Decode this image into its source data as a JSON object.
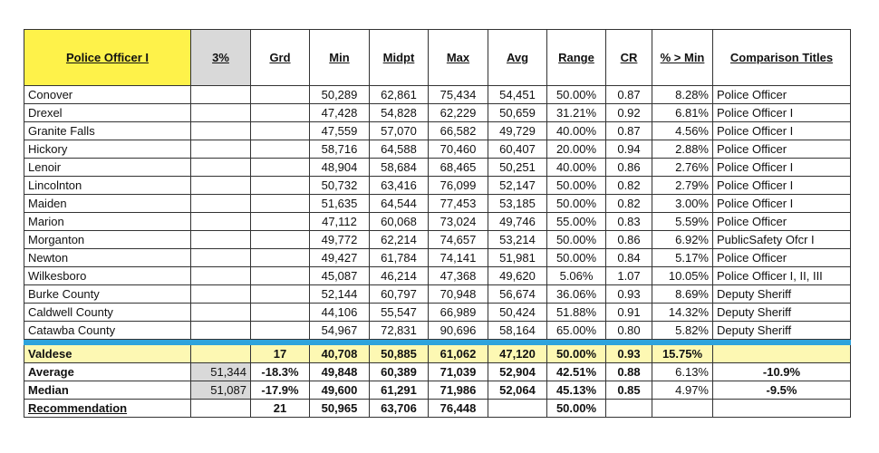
{
  "headers": {
    "title": "Police Officer I",
    "pct": "3%",
    "grd": "Grd",
    "min": "Min",
    "midpt": "Midpt",
    "max": "Max",
    "avg": "Avg",
    "range": "Range",
    "cr": "CR",
    "pct_min": "% > Min",
    "comparison": "Comparison Titles"
  },
  "rows": [
    {
      "name": "Conover",
      "min": "50,289",
      "midpt": "62,861",
      "max": "75,434",
      "avg": "54,451",
      "range": "50.00%",
      "cr": "0.87",
      "pct_min": "8.28%",
      "title": "Police Officer"
    },
    {
      "name": "Drexel",
      "min": "47,428",
      "midpt": "54,828",
      "max": "62,229",
      "avg": "50,659",
      "range": "31.21%",
      "cr": "0.92",
      "pct_min": "6.81%",
      "title": "Police Officer I"
    },
    {
      "name": "Granite Falls",
      "min": "47,559",
      "midpt": "57,070",
      "max": "66,582",
      "avg": "49,729",
      "range": "40.00%",
      "cr": "0.87",
      "pct_min": "4.56%",
      "title": "Police Officer I"
    },
    {
      "name": "Hickory",
      "min": "58,716",
      "midpt": "64,588",
      "max": "70,460",
      "avg": "60,407",
      "range": "20.00%",
      "cr": "0.94",
      "pct_min": "2.88%",
      "title": "Police Officer"
    },
    {
      "name": "Lenoir",
      "min": "48,904",
      "midpt": "58,684",
      "max": "68,465",
      "avg": "50,251",
      "range": "40.00%",
      "cr": "0.86",
      "pct_min": "2.76%",
      "title": "Police Officer I"
    },
    {
      "name": "Lincolnton",
      "min": "50,732",
      "midpt": "63,416",
      "max": "76,099",
      "avg": "52,147",
      "range": "50.00%",
      "cr": "0.82",
      "pct_min": "2.79%",
      "title": "Police Officer I"
    },
    {
      "name": "Maiden",
      "min": "51,635",
      "midpt": "64,544",
      "max": "77,453",
      "avg": "53,185",
      "range": "50.00%",
      "cr": "0.82",
      "pct_min": "3.00%",
      "title": "Police Officer I"
    },
    {
      "name": "Marion",
      "min": "47,112",
      "midpt": "60,068",
      "max": "73,024",
      "avg": "49,746",
      "range": "55.00%",
      "cr": "0.83",
      "pct_min": "5.59%",
      "title": "Police Officer"
    },
    {
      "name": "Morganton",
      "min": "49,772",
      "midpt": "62,214",
      "max": "74,657",
      "avg": "53,214",
      "range": "50.00%",
      "cr": "0.86",
      "pct_min": "6.92%",
      "title": "PublicSafety Ofcr I"
    },
    {
      "name": "Newton",
      "min": "49,427",
      "midpt": "61,784",
      "max": "74,141",
      "avg": "51,981",
      "range": "50.00%",
      "cr": "0.84",
      "pct_min": "5.17%",
      "title": "Police Officer"
    },
    {
      "name": "Wilkesboro",
      "min": "45,087",
      "midpt": "46,214",
      "max": "47,368",
      "avg": "49,620",
      "range": "5.06%",
      "cr": "1.07",
      "pct_min": "10.05%",
      "title": "Police Officer I, II, III"
    },
    {
      "name": "Burke County",
      "min": "52,144",
      "midpt": "60,797",
      "max": "70,948",
      "avg": "56,674",
      "range": "36.06%",
      "cr": "0.93",
      "pct_min": "8.69%",
      "title": "Deputy Sheriff"
    },
    {
      "name": "Caldwell County",
      "min": "44,106",
      "midpt": "55,547",
      "max": "66,989",
      "avg": "50,424",
      "range": "51.88%",
      "cr": "0.91",
      "pct_min": "14.32%",
      "title": "Deputy Sheriff"
    },
    {
      "name": "Catawba County",
      "min": "54,967",
      "midpt": "72,831",
      "max": "90,696",
      "avg": "58,164",
      "range": "65.00%",
      "cr": "0.80",
      "pct_min": "5.82%",
      "title": "Deputy Sheriff"
    }
  ],
  "valdese": {
    "name": "Valdese",
    "grd": "17",
    "min": "40,708",
    "midpt": "50,885",
    "max": "61,062",
    "avg": "47,120",
    "range": "50.00%",
    "cr": "0.93",
    "pct_min": "15.75%"
  },
  "average": {
    "label": "Average",
    "pct": "51,344",
    "grd": "-18.3%",
    "min": "49,848",
    "midpt": "60,389",
    "max": "71,039",
    "avg": "52,904",
    "range": "42.51%",
    "cr": "0.88",
    "pct_min": "6.13%",
    "comparison": "-10.9%"
  },
  "median": {
    "label": "Median",
    "pct": "51,087",
    "grd": "-17.9%",
    "min": "49,600",
    "midpt": "61,291",
    "max": "71,986",
    "avg": "52,064",
    "range": "45.13%",
    "cr": "0.85",
    "pct_min": "4.97%",
    "comparison": "-9.5%"
  },
  "recommendation": {
    "label": "Recommendation",
    "grd": "21",
    "min": "50,965",
    "midpt": "63,706",
    "max": "76,448",
    "range": "50.00%"
  },
  "colors": {
    "title_bg": "#fef24a",
    "pct_bg": "#d9d9d9",
    "separator": "#2ea3dc",
    "valdese_bg": "#fdf8b3"
  }
}
